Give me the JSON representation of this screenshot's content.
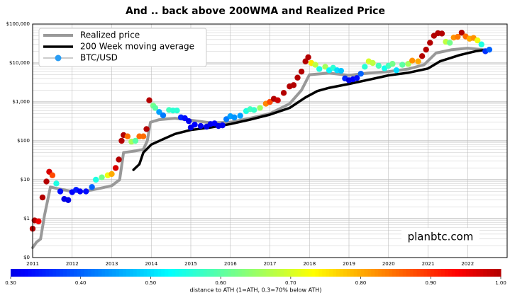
{
  "chart_data": {
    "type": "line",
    "title": "And .. back above 200WMA and Realized Price",
    "annotation": "planbtc.com",
    "log_y": true,
    "grid": true,
    "legend": "upper left",
    "xlim": [
      2011,
      2023
    ],
    "xticks": [
      2011,
      2012,
      2013,
      2014,
      2015,
      2016,
      2017,
      2018,
      2019,
      2020,
      2021,
      2022
    ],
    "ylim": [
      0.1,
      100000
    ],
    "yticks": [
      {
        "value": 0.1,
        "label": "$0"
      },
      {
        "value": 1,
        "label": "$1"
      },
      {
        "value": 10,
        "label": "$10"
      },
      {
        "value": 100,
        "label": "$100"
      },
      {
        "value": 1000,
        "label": "$1,000"
      },
      {
        "value": 10000,
        "label": "$10,000"
      },
      {
        "value": 100000,
        "label": "$100,000"
      }
    ],
    "series": [
      {
        "name": "Realized price",
        "type": "line",
        "color": "#999999",
        "x": [
          2011.0,
          2011.1,
          2011.2,
          2011.3,
          2011.45,
          2011.6,
          2012.0,
          2012.3,
          2012.7,
          2013.0,
          2013.2,
          2013.3,
          2013.6,
          2013.8,
          2013.9,
          2013.98,
          2014.2,
          2014.6,
          2015.0,
          2015.5,
          2016.0,
          2016.5,
          2017.0,
          2017.5,
          2017.8,
          2018.0,
          2018.5,
          2019.0,
          2019.5,
          2020.0,
          2020.5,
          2020.9,
          2021.2,
          2021.6,
          2022.0,
          2022.4,
          2022.55
        ],
        "values": [
          0.18,
          0.25,
          0.3,
          1.2,
          6.5,
          6,
          5,
          5,
          6,
          7,
          10,
          50,
          55,
          60,
          100,
          300,
          350,
          380,
          340,
          290,
          300,
          380,
          500,
          900,
          2000,
          5000,
          5500,
          4800,
          5500,
          6000,
          7000,
          9000,
          18000,
          22000,
          24000,
          22000,
          21000
        ]
      },
      {
        "name": "200 Week moving average",
        "type": "line",
        "color": "#000000",
        "x": [
          2013.55,
          2013.7,
          2013.8,
          2014.0,
          2014.3,
          2014.6,
          2015.0,
          2015.5,
          2016.0,
          2016.5,
          2017.0,
          2017.5,
          2017.9,
          2018.2,
          2018.5,
          2019.0,
          2019.5,
          2020.0,
          2020.5,
          2021.0,
          2021.3,
          2021.8,
          2022.2,
          2022.5
        ],
        "values": [
          18,
          25,
          50,
          80,
          110,
          150,
          190,
          220,
          270,
          350,
          470,
          700,
          1300,
          1900,
          2300,
          2900,
          3700,
          4800,
          5600,
          7200,
          11000,
          16000,
          20000,
          22000
        ]
      },
      {
        "name": "BTC/USD",
        "type": "scatter",
        "color": "#2a9df4",
        "x": [
          2011.0,
          2011.05,
          2011.15,
          2011.25,
          2011.35,
          2011.42,
          2011.5,
          2011.6,
          2011.7,
          2011.8,
          2011.9,
          2012.0,
          2012.1,
          2012.2,
          2012.35,
          2012.5,
          2012.6,
          2012.75,
          2012.9,
          2013.0,
          2013.1,
          2013.18,
          2013.25,
          2013.3,
          2013.4,
          2013.5,
          2013.6,
          2013.7,
          2013.8,
          2013.88,
          2013.95,
          2014.05,
          2014.1,
          2014.2,
          2014.3,
          2014.45,
          2014.55,
          2014.65,
          2014.75,
          2014.85,
          2014.95,
          2015.0,
          2015.1,
          2015.25,
          2015.4,
          2015.5,
          2015.6,
          2015.7,
          2015.8,
          2015.9,
          2016.0,
          2016.1,
          2016.25,
          2016.4,
          2016.5,
          2016.6,
          2016.75,
          2016.9,
          2017.0,
          2017.1,
          2017.2,
          2017.35,
          2017.5,
          2017.6,
          2017.7,
          2017.8,
          2017.9,
          2017.97,
          2018.05,
          2018.15,
          2018.25,
          2018.4,
          2018.5,
          2018.6,
          2018.7,
          2018.8,
          2018.9,
          2019.0,
          2019.1,
          2019.2,
          2019.3,
          2019.4,
          2019.5,
          2019.6,
          2019.75,
          2019.9,
          2020.0,
          2020.1,
          2020.2,
          2020.35,
          2020.5,
          2020.6,
          2020.75,
          2020.85,
          2020.95,
          2021.05,
          2021.15,
          2021.25,
          2021.35,
          2021.45,
          2021.55,
          2021.65,
          2021.75,
          2021.85,
          2021.95,
          2022.05,
          2022.15,
          2022.25,
          2022.35,
          2022.45,
          2022.55
        ],
        "values": [
          0.55,
          0.9,
          0.85,
          3.5,
          9,
          16,
          13,
          8,
          5,
          3.2,
          3,
          4.8,
          5.5,
          5,
          5,
          6.5,
          10,
          11.5,
          13,
          14,
          20,
          33,
          100,
          140,
          130,
          95,
          100,
          130,
          130,
          200,
          1100,
          800,
          700,
          550,
          450,
          620,
          600,
          600,
          400,
          380,
          320,
          220,
          260,
          240,
          230,
          270,
          280,
          240,
          250,
          360,
          430,
          400,
          440,
          580,
          650,
          620,
          700,
          900,
          1000,
          1200,
          1100,
          1700,
          2500,
          2700,
          4200,
          6000,
          11000,
          14000,
          10000,
          9000,
          7000,
          8000,
          6500,
          7500,
          6500,
          6300,
          4000,
          3600,
          3800,
          4100,
          5300,
          8000,
          11000,
          10000,
          8500,
          7300,
          8500,
          9500,
          6500,
          9000,
          9500,
          11500,
          11000,
          15000,
          22000,
          33000,
          50000,
          58000,
          57000,
          35000,
          33000,
          45000,
          47000,
          60000,
          48000,
          42000,
          44000,
          38000,
          30000,
          20000,
          22000
        ],
        "c": [
          1.0,
          1.0,
          0.95,
          1.0,
          1.0,
          0.97,
          0.88,
          0.55,
          0.33,
          0.3,
          0.3,
          0.32,
          0.34,
          0.32,
          0.33,
          0.4,
          0.55,
          0.62,
          0.72,
          0.8,
          0.97,
          1.0,
          1.0,
          1.0,
          0.85,
          0.66,
          0.6,
          0.85,
          0.85,
          1.0,
          1.0,
          0.62,
          0.6,
          0.45,
          0.42,
          0.58,
          0.56,
          0.56,
          0.35,
          0.33,
          0.31,
          0.3,
          0.32,
          0.31,
          0.3,
          0.31,
          0.32,
          0.3,
          0.31,
          0.42,
          0.45,
          0.44,
          0.45,
          0.55,
          0.58,
          0.57,
          0.65,
          0.83,
          0.88,
          1.0,
          0.98,
          1.0,
          1.0,
          1.0,
          1.0,
          1.0,
          1.0,
          1.0,
          0.75,
          0.68,
          0.55,
          0.66,
          0.52,
          0.56,
          0.5,
          0.48,
          0.35,
          0.3,
          0.32,
          0.33,
          0.4,
          0.56,
          0.7,
          0.68,
          0.58,
          0.54,
          0.58,
          0.62,
          0.5,
          0.6,
          0.66,
          0.82,
          0.8,
          1.0,
          1.0,
          1.0,
          1.0,
          1.0,
          1.0,
          0.68,
          0.62,
          0.82,
          0.84,
          1.0,
          0.85,
          0.8,
          0.82,
          0.72,
          0.55,
          0.36,
          0.4
        ]
      }
    ],
    "colorbar": {
      "colormap": "jet",
      "lim": [
        0.3,
        1.0
      ],
      "label": "distance to ATH (1=ATH, 0.3=70% below ATH)",
      "ticks": [
        {
          "value": 0.3,
          "label": "0.30"
        },
        {
          "value": 0.4,
          "label": "0.40"
        },
        {
          "value": 0.5,
          "label": "0.50"
        },
        {
          "value": 0.6,
          "label": "0.60"
        },
        {
          "value": 0.7,
          "label": "0.70"
        },
        {
          "value": 0.8,
          "label": "0.80"
        },
        {
          "value": 0.9,
          "label": "0.90"
        },
        {
          "value": 1.0,
          "label": "1.00"
        }
      ]
    }
  }
}
